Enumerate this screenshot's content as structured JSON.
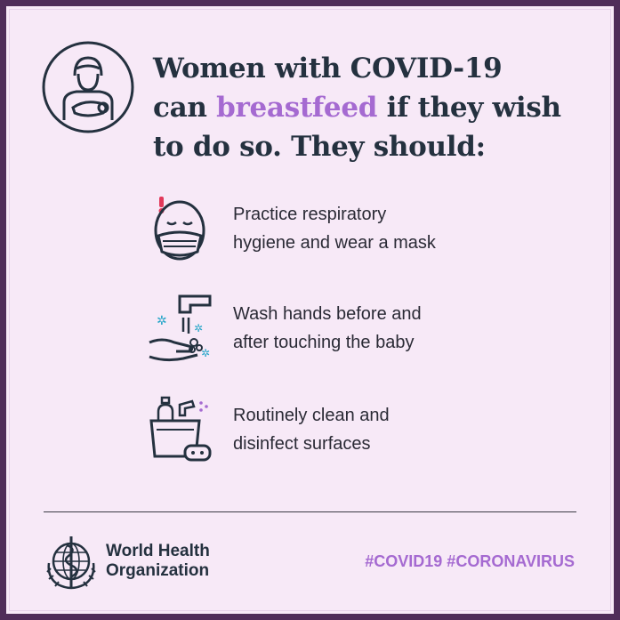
{
  "headline": {
    "line1": "Women with COVID-19",
    "line2_prefix": "can ",
    "line2_highlight": "breastfeed",
    "line2_suffix": " if they wish",
    "line3": "to do so. They should:"
  },
  "items": [
    {
      "icon": "masked-face-icon",
      "line1": "Practice respiratory",
      "line2": "hygiene and wear a mask"
    },
    {
      "icon": "handwashing-icon",
      "line1": "Wash hands before and",
      "line2": "after touching the baby"
    },
    {
      "icon": "cleaning-supplies-icon",
      "line1": "Routinely clean and",
      "line2": "disinfect surfaces"
    }
  ],
  "footer": {
    "org_line1": "World Health",
    "org_line2": "Organization",
    "hashtags": "#COVID19 #CORONAVIRUS"
  },
  "colors": {
    "frame": "#4f2d59",
    "background": "#f7e9f7",
    "text": "#24313f",
    "accent": "#a56ad1",
    "alert": "#e2395a",
    "water": "#2aa7c9"
  }
}
